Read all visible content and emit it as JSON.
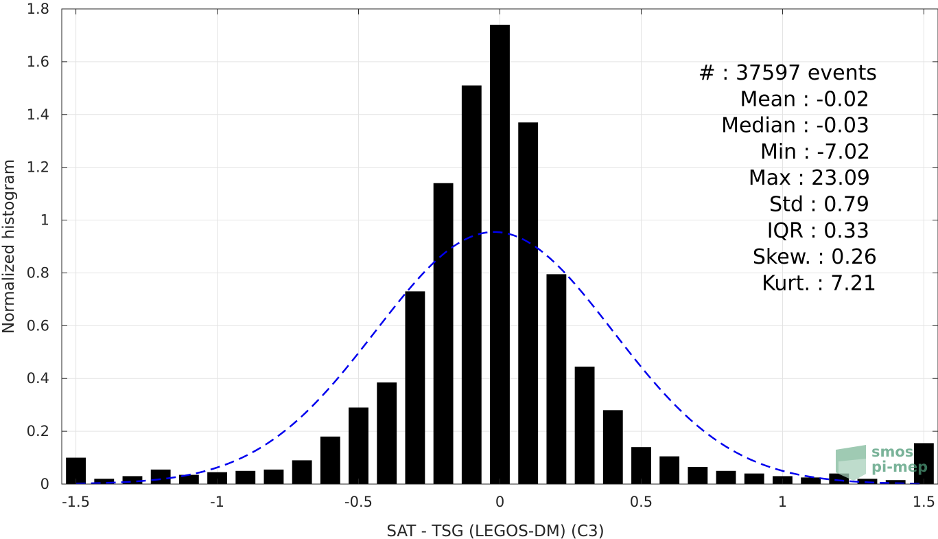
{
  "chart_data": {
    "type": "bar",
    "xlabel": "SAT - TSG (LEGOS-DM) (C3)",
    "ylabel": "Normalized histogram",
    "xlim": [
      -1.55,
      1.55
    ],
    "ylim": [
      0,
      1.8
    ],
    "xticks": [
      -1.5,
      -1,
      -0.5,
      0,
      0.5,
      1,
      1.5
    ],
    "xtick_labels": [
      "-1.5",
      "-1",
      "-0.5",
      "0",
      "0.5",
      "1",
      "1.5"
    ],
    "yticks": [
      0,
      0.2,
      0.4,
      0.6,
      0.8,
      1,
      1.2,
      1.4,
      1.6,
      1.8
    ],
    "ytick_labels": [
      "0",
      "0.2",
      "0.4",
      "0.6",
      "0.8",
      "1",
      "1.2",
      "1.4",
      "1.6",
      "1.8"
    ],
    "grid": true,
    "bar_width": 0.07,
    "bar_color": "#000000",
    "bars": {
      "x": [
        -1.5,
        -1.4,
        -1.3,
        -1.2,
        -1.1,
        -1.0,
        -0.9,
        -0.8,
        -0.7,
        -0.6,
        -0.5,
        -0.4,
        -0.3,
        -0.2,
        -0.1,
        0.0,
        0.1,
        0.2,
        0.3,
        0.4,
        0.5,
        0.6,
        0.7,
        0.8,
        0.9,
        1.0,
        1.1,
        1.2,
        1.3,
        1.4,
        1.5
      ],
      "values": [
        0.1,
        0.02,
        0.03,
        0.055,
        0.035,
        0.045,
        0.05,
        0.055,
        0.09,
        0.18,
        0.29,
        0.385,
        0.73,
        1.14,
        1.51,
        1.74,
        1.37,
        0.795,
        0.445,
        0.28,
        0.14,
        0.105,
        0.065,
        0.05,
        0.04,
        0.03,
        0.025,
        0.04,
        0.02,
        0.015,
        0.155
      ]
    },
    "fit_curve": {
      "type": "gaussian",
      "style": "dashed",
      "color": "#0000ee",
      "mean": -0.02,
      "peak": 0.955,
      "sigma": 0.42,
      "x_range": [
        -1.5,
        1.5
      ]
    },
    "annotations": [
      "#  : 37597 events",
      "Mean : -0.02",
      "Median : -0.03",
      "Min : -7.02",
      "Max : 23.09",
      "Std : 0.79",
      "IQR : 0.33",
      "Skew. : 0.26",
      "Kurt. : 7.21"
    ]
  },
  "watermark": {
    "line1": "smos",
    "line2": "pi-mep",
    "color": "#4e9a78"
  }
}
